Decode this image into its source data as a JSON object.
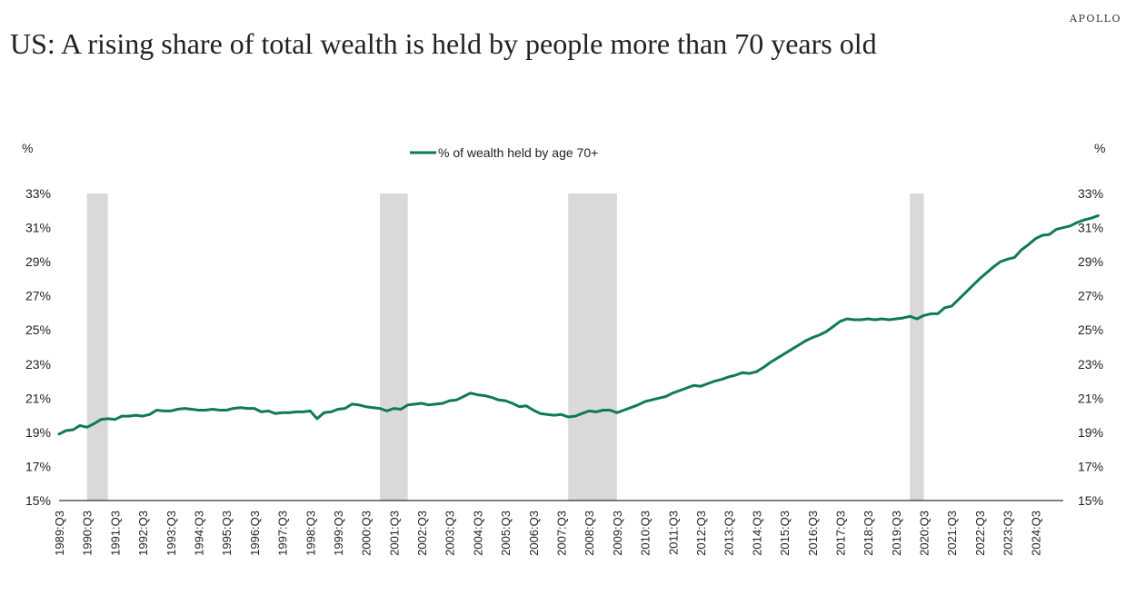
{
  "brand": "APOLLO",
  "chart_data": {
    "type": "line",
    "title": "US: A rising share of  total wealth is held by people more than 70 years old",
    "ylabel_left": "%",
    "ylabel_right": "%",
    "ylim": [
      15,
      33
    ],
    "yticks": [
      15,
      17,
      19,
      21,
      23,
      25,
      27,
      29,
      31,
      33
    ],
    "ytick_labels": [
      "15%",
      "17%",
      "19%",
      "21%",
      "23%",
      "25%",
      "27%",
      "29%",
      "31%",
      "33%"
    ],
    "x_tick_labels": [
      "1989:Q3",
      "1990:Q3",
      "1991:Q3",
      "1992:Q3",
      "1993:Q3",
      "1994:Q3",
      "1995:Q3",
      "1996:Q3",
      "1997:Q3",
      "1998:Q3",
      "1999:Q3",
      "2000:Q3",
      "2001:Q3",
      "2002:Q3",
      "2003:Q3",
      "2004:Q3",
      "2005:Q3",
      "2006:Q3",
      "2007:Q3",
      "2008:Q3",
      "2009:Q3",
      "2010:Q3",
      "2011:Q3",
      "2012:Q3",
      "2013:Q3",
      "2014:Q3",
      "2015:Q3",
      "2016:Q3",
      "2017:Q3",
      "2018:Q3",
      "2019:Q3",
      "2020:Q3",
      "2021:Q3",
      "2022:Q3",
      "2023:Q3",
      "2024:Q3"
    ],
    "legend": "top-center",
    "grid": false,
    "line_color": "#0f7a5a",
    "recession_color": "#d9d9d9",
    "recessions": [
      [
        "1990:Q3",
        "1991:Q1"
      ],
      [
        "2001:Q1",
        "2001:Q4"
      ],
      [
        "2007:Q4",
        "2009:Q2"
      ],
      [
        "2020:Q1",
        "2020:Q2"
      ]
    ],
    "series": [
      {
        "name": "% of wealth held by age 70+",
        "start": "1989:Q3",
        "values": [
          18.9,
          19.1,
          19.15,
          19.4,
          19.3,
          19.5,
          19.75,
          19.8,
          19.75,
          19.95,
          19.95,
          20.0,
          19.95,
          20.05,
          20.3,
          20.25,
          20.25,
          20.35,
          20.4,
          20.35,
          20.3,
          20.3,
          20.35,
          20.3,
          20.3,
          20.4,
          20.45,
          20.4,
          20.4,
          20.2,
          20.25,
          20.1,
          20.15,
          20.15,
          20.2,
          20.2,
          20.25,
          19.8,
          20.15,
          20.2,
          20.35,
          20.4,
          20.65,
          20.6,
          20.5,
          20.45,
          20.4,
          20.25,
          20.4,
          20.35,
          20.6,
          20.65,
          20.7,
          20.6,
          20.65,
          20.7,
          20.85,
          20.9,
          21.1,
          21.3,
          21.2,
          21.15,
          21.05,
          20.9,
          20.85,
          20.7,
          20.5,
          20.55,
          20.3,
          20.1,
          20.05,
          20.0,
          20.05,
          19.9,
          19.95,
          20.1,
          20.25,
          20.2,
          20.3,
          20.3,
          20.15,
          20.3,
          20.45,
          20.6,
          20.8,
          20.9,
          21.0,
          21.1,
          21.3,
          21.45,
          21.6,
          21.75,
          21.7,
          21.85,
          22.0,
          22.1,
          22.25,
          22.35,
          22.5,
          22.45,
          22.55,
          22.8,
          23.1,
          23.35,
          23.6,
          23.85,
          24.1,
          24.35,
          24.55,
          24.7,
          24.9,
          25.2,
          25.5,
          25.65,
          25.6,
          25.6,
          25.65,
          25.6,
          25.65,
          25.6,
          25.65,
          25.7,
          25.8,
          25.65,
          25.85,
          25.95,
          25.95,
          26.3,
          26.4,
          26.8,
          27.2,
          27.6,
          28.0,
          28.35,
          28.7,
          29.0,
          29.15,
          29.25,
          29.7,
          30.0,
          30.35,
          30.55,
          30.6,
          30.9,
          31.0,
          31.1,
          31.3,
          31.45,
          31.55,
          31.7
        ]
      }
    ]
  }
}
